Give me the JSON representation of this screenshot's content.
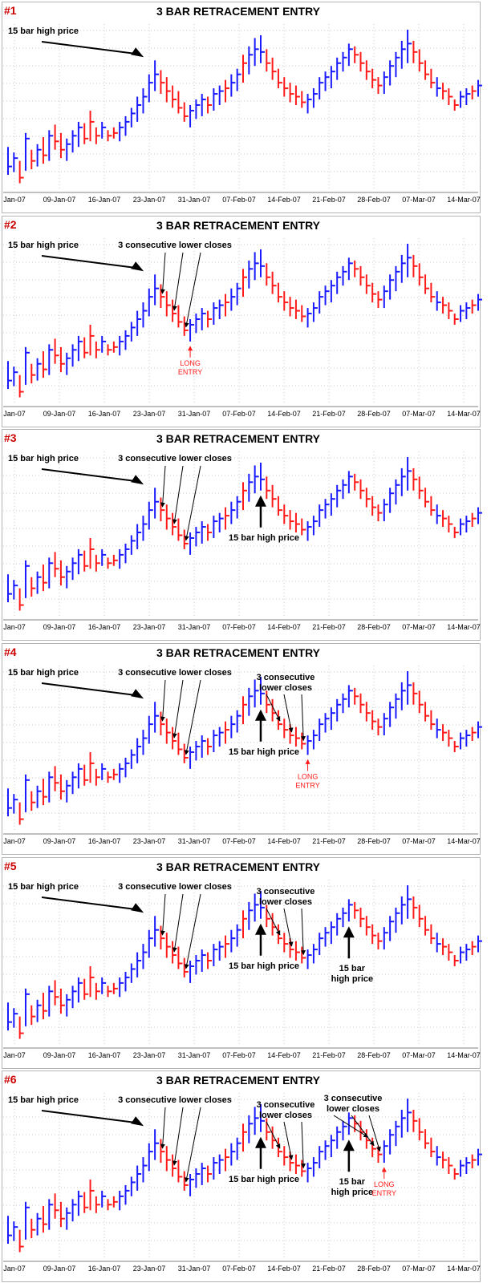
{
  "colors": {
    "up": "#1a1aff",
    "down": "#ff1a1a",
    "text": "#000000",
    "entry": "#ff1a1a",
    "gridline": "#c8c8c8",
    "frame": "#b4b4b4"
  },
  "x_axis_labels": [
    "Jan-07",
    "09-Jan-07",
    "16-Jan-07",
    "23-Jan-07",
    "31-Jan-07",
    "07-Feb-07",
    "14-Feb-07",
    "21-Feb-07",
    "28-Feb-07",
    "07-Mar-07",
    "14-Mar-07"
  ],
  "panels": [
    {
      "number": "#1",
      "title": "3 BAR RETRACEMENT ENTRY",
      "annotations": [
        {
          "kind": "big-arrow",
          "text": "15 bar high price",
          "target_bar": 25
        }
      ]
    },
    {
      "number": "#2",
      "title": "3 BAR RETRACEMENT ENTRY",
      "annotations": [
        {
          "kind": "big-arrow",
          "text": "15 bar high price",
          "target_bar": 25
        },
        {
          "kind": "fan",
          "text": "3 consecutive lower closes",
          "bars": [
            26,
            28,
            30
          ]
        },
        {
          "kind": "entry",
          "text": [
            "LONG",
            "ENTRY"
          ],
          "bar": 31
        }
      ]
    },
    {
      "number": "#3",
      "title": "3 BAR RETRACEMENT ENTRY",
      "annotations": [
        {
          "kind": "big-arrow",
          "text": "15 bar high price",
          "target_bar": 25
        },
        {
          "kind": "fan",
          "text": "3 consecutive lower closes",
          "bars": [
            26,
            28,
            30
          ]
        },
        {
          "kind": "up-arrow",
          "text": [
            "15 bar high price"
          ],
          "bar": 43
        }
      ]
    },
    {
      "number": "#4",
      "title": "3 BAR RETRACEMENT ENTRY",
      "annotations": [
        {
          "kind": "big-arrow",
          "text": "15 bar high price",
          "target_bar": 25
        },
        {
          "kind": "fan",
          "text": "3 consecutive lower closes",
          "bars": [
            26,
            28,
            30
          ]
        },
        {
          "kind": "up-arrow",
          "text": [
            "15 bar high price"
          ],
          "bar": 43
        },
        {
          "kind": "fan2",
          "text": [
            "3 consecutive",
            "lower closes"
          ],
          "bars": [
            46,
            48,
            50
          ]
        },
        {
          "kind": "entry",
          "text": [
            "LONG",
            "ENTRY"
          ],
          "bar": 51
        }
      ]
    },
    {
      "number": "#5",
      "title": "3 BAR RETRACEMENT ENTRY",
      "annotations": [
        {
          "kind": "big-arrow",
          "text": "15 bar high price",
          "target_bar": 25
        },
        {
          "kind": "fan",
          "text": "3 consecutive lower closes",
          "bars": [
            26,
            28,
            30
          ]
        },
        {
          "kind": "up-arrow",
          "text": [
            "15 bar high price"
          ],
          "bar": 43
        },
        {
          "kind": "fan2",
          "text": [
            "3 consecutive",
            "lower closes"
          ],
          "bars": [
            46,
            48,
            50
          ]
        },
        {
          "kind": "up-arrow",
          "text": [
            "15 bar",
            "high price"
          ],
          "bar": 58
        }
      ]
    },
    {
      "number": "#6",
      "title": "3 BAR RETRACEMENT ENTRY",
      "annotations": [
        {
          "kind": "big-arrow",
          "text": "15 bar high price",
          "target_bar": 25
        },
        {
          "kind": "fan",
          "text": "3 consecutive lower closes",
          "bars": [
            26,
            28,
            30
          ]
        },
        {
          "kind": "up-arrow",
          "text": [
            "15 bar high price"
          ],
          "bar": 43
        },
        {
          "kind": "fan2",
          "text": [
            "3 consecutive",
            "lower closes"
          ],
          "bars": [
            46,
            48,
            50
          ]
        },
        {
          "kind": "up-arrow",
          "text": [
            "15 bar",
            "high price"
          ],
          "bar": 58
        },
        {
          "kind": "fan3",
          "text": [
            "3 consecutive",
            "lower closes"
          ],
          "bars": [
            61,
            62,
            63
          ]
        },
        {
          "kind": "entry",
          "text": [
            "LONG",
            "ENTRY"
          ],
          "bar": 64
        }
      ]
    }
  ],
  "chart_data": {
    "type": "ohlc",
    "title": "3 BAR RETRACEMENT ENTRY",
    "ylim": [
      0,
      100
    ],
    "bars": [
      {
        "h": 20,
        "l": 0,
        "c": 6,
        "up": true
      },
      {
        "h": 16,
        "l": 2,
        "c": 12,
        "up": true
      },
      {
        "h": 10,
        "l": -6,
        "c": -2,
        "up": false
      },
      {
        "h": 30,
        "l": 3,
        "c": 26,
        "up": true
      },
      {
        "h": 18,
        "l": 4,
        "c": 10,
        "up": false
      },
      {
        "h": 22,
        "l": 6,
        "c": 18,
        "up": true
      },
      {
        "h": 27,
        "l": 8,
        "c": 14,
        "up": false
      },
      {
        "h": 32,
        "l": 10,
        "c": 28,
        "up": true
      },
      {
        "h": 36,
        "l": 18,
        "c": 24,
        "up": false
      },
      {
        "h": 30,
        "l": 12,
        "c": 18,
        "up": false
      },
      {
        "h": 26,
        "l": 10,
        "c": 22,
        "up": true
      },
      {
        "h": 32,
        "l": 16,
        "c": 28,
        "up": true
      },
      {
        "h": 38,
        "l": 20,
        "c": 34,
        "up": true
      },
      {
        "h": 37,
        "l": 22,
        "c": 26,
        "up": false
      },
      {
        "h": 46,
        "l": 24,
        "c": 38,
        "up": false
      },
      {
        "h": 34,
        "l": 22,
        "c": 28,
        "up": false
      },
      {
        "h": 38,
        "l": 26,
        "c": 34,
        "up": true
      },
      {
        "h": 32,
        "l": 24,
        "c": 28,
        "up": false
      },
      {
        "h": 34,
        "l": 26,
        "c": 30,
        "up": false
      },
      {
        "h": 38,
        "l": 24,
        "c": 34,
        "up": true
      },
      {
        "h": 42,
        "l": 28,
        "c": 38,
        "up": true
      },
      {
        "h": 48,
        "l": 34,
        "c": 44,
        "up": true
      },
      {
        "h": 56,
        "l": 38,
        "c": 50,
        "up": true
      },
      {
        "h": 62,
        "l": 44,
        "c": 56,
        "up": true
      },
      {
        "h": 72,
        "l": 52,
        "c": 66,
        "up": true
      },
      {
        "h": 82,
        "l": 60,
        "c": 72,
        "up": true
      },
      {
        "h": 75,
        "l": 58,
        "c": 66,
        "up": false
      },
      {
        "h": 70,
        "l": 52,
        "c": 60,
        "up": false
      },
      {
        "h": 64,
        "l": 48,
        "c": 54,
        "up": false
      },
      {
        "h": 60,
        "l": 44,
        "c": 48,
        "up": false
      },
      {
        "h": 52,
        "l": 38,
        "c": 42,
        "up": false
      },
      {
        "h": 50,
        "l": 34,
        "c": 46,
        "up": true
      },
      {
        "h": 54,
        "l": 40,
        "c": 50,
        "up": true
      },
      {
        "h": 58,
        "l": 42,
        "c": 54,
        "up": true
      },
      {
        "h": 56,
        "l": 44,
        "c": 50,
        "up": false
      },
      {
        "h": 62,
        "l": 46,
        "c": 58,
        "up": true
      },
      {
        "h": 64,
        "l": 50,
        "c": 60,
        "up": true
      },
      {
        "h": 68,
        "l": 52,
        "c": 62,
        "up": false
      },
      {
        "h": 72,
        "l": 56,
        "c": 66,
        "up": true
      },
      {
        "h": 76,
        "l": 60,
        "c": 72,
        "up": true
      },
      {
        "h": 86,
        "l": 66,
        "c": 80,
        "up": false
      },
      {
        "h": 92,
        "l": 72,
        "c": 86,
        "up": true
      },
      {
        "h": 98,
        "l": 78,
        "c": 90,
        "up": true
      },
      {
        "h": 100,
        "l": 80,
        "c": 88,
        "up": true
      },
      {
        "h": 90,
        "l": 74,
        "c": 80,
        "up": false
      },
      {
        "h": 84,
        "l": 68,
        "c": 74,
        "up": false
      },
      {
        "h": 76,
        "l": 62,
        "c": 66,
        "up": false
      },
      {
        "h": 70,
        "l": 56,
        "c": 62,
        "up": false
      },
      {
        "h": 66,
        "l": 52,
        "c": 58,
        "up": false
      },
      {
        "h": 64,
        "l": 50,
        "c": 56,
        "up": false
      },
      {
        "h": 60,
        "l": 48,
        "c": 52,
        "up": false
      },
      {
        "h": 58,
        "l": 44,
        "c": 54,
        "up": true
      },
      {
        "h": 62,
        "l": 48,
        "c": 58,
        "up": true
      },
      {
        "h": 70,
        "l": 54,
        "c": 66,
        "up": true
      },
      {
        "h": 74,
        "l": 60,
        "c": 70,
        "up": true
      },
      {
        "h": 78,
        "l": 62,
        "c": 74,
        "up": true
      },
      {
        "h": 84,
        "l": 68,
        "c": 80,
        "up": true
      },
      {
        "h": 88,
        "l": 74,
        "c": 84,
        "up": true
      },
      {
        "h": 94,
        "l": 78,
        "c": 90,
        "up": true
      },
      {
        "h": 92,
        "l": 80,
        "c": 86,
        "up": false
      },
      {
        "h": 88,
        "l": 74,
        "c": 80,
        "up": false
      },
      {
        "h": 82,
        "l": 68,
        "c": 74,
        "up": false
      },
      {
        "h": 76,
        "l": 62,
        "c": 68,
        "up": false
      },
      {
        "h": 70,
        "l": 58,
        "c": 64,
        "up": false
      },
      {
        "h": 74,
        "l": 58,
        "c": 70,
        "up": true
      },
      {
        "h": 82,
        "l": 64,
        "c": 78,
        "up": true
      },
      {
        "h": 88,
        "l": 70,
        "c": 84,
        "up": true
      },
      {
        "h": 96,
        "l": 76,
        "c": 90,
        "up": true
      },
      {
        "h": 104,
        "l": 80,
        "c": 94,
        "up": true
      },
      {
        "h": 96,
        "l": 80,
        "c": 88,
        "up": false
      },
      {
        "h": 90,
        "l": 74,
        "c": 80,
        "up": false
      },
      {
        "h": 82,
        "l": 68,
        "c": 72,
        "up": false
      },
      {
        "h": 76,
        "l": 62,
        "c": 66,
        "up": false
      },
      {
        "h": 70,
        "l": 56,
        "c": 62,
        "up": true
      },
      {
        "h": 66,
        "l": 54,
        "c": 60,
        "up": false
      },
      {
        "h": 62,
        "l": 50,
        "c": 56,
        "up": false
      },
      {
        "h": 54,
        "l": 46,
        "c": 50,
        "up": false
      },
      {
        "h": 60,
        "l": 48,
        "c": 56,
        "up": true
      },
      {
        "h": 62,
        "l": 50,
        "c": 58,
        "up": true
      },
      {
        "h": 64,
        "l": 54,
        "c": 60,
        "up": false
      },
      {
        "h": 68,
        "l": 56,
        "c": 64,
        "up": true
      }
    ]
  }
}
